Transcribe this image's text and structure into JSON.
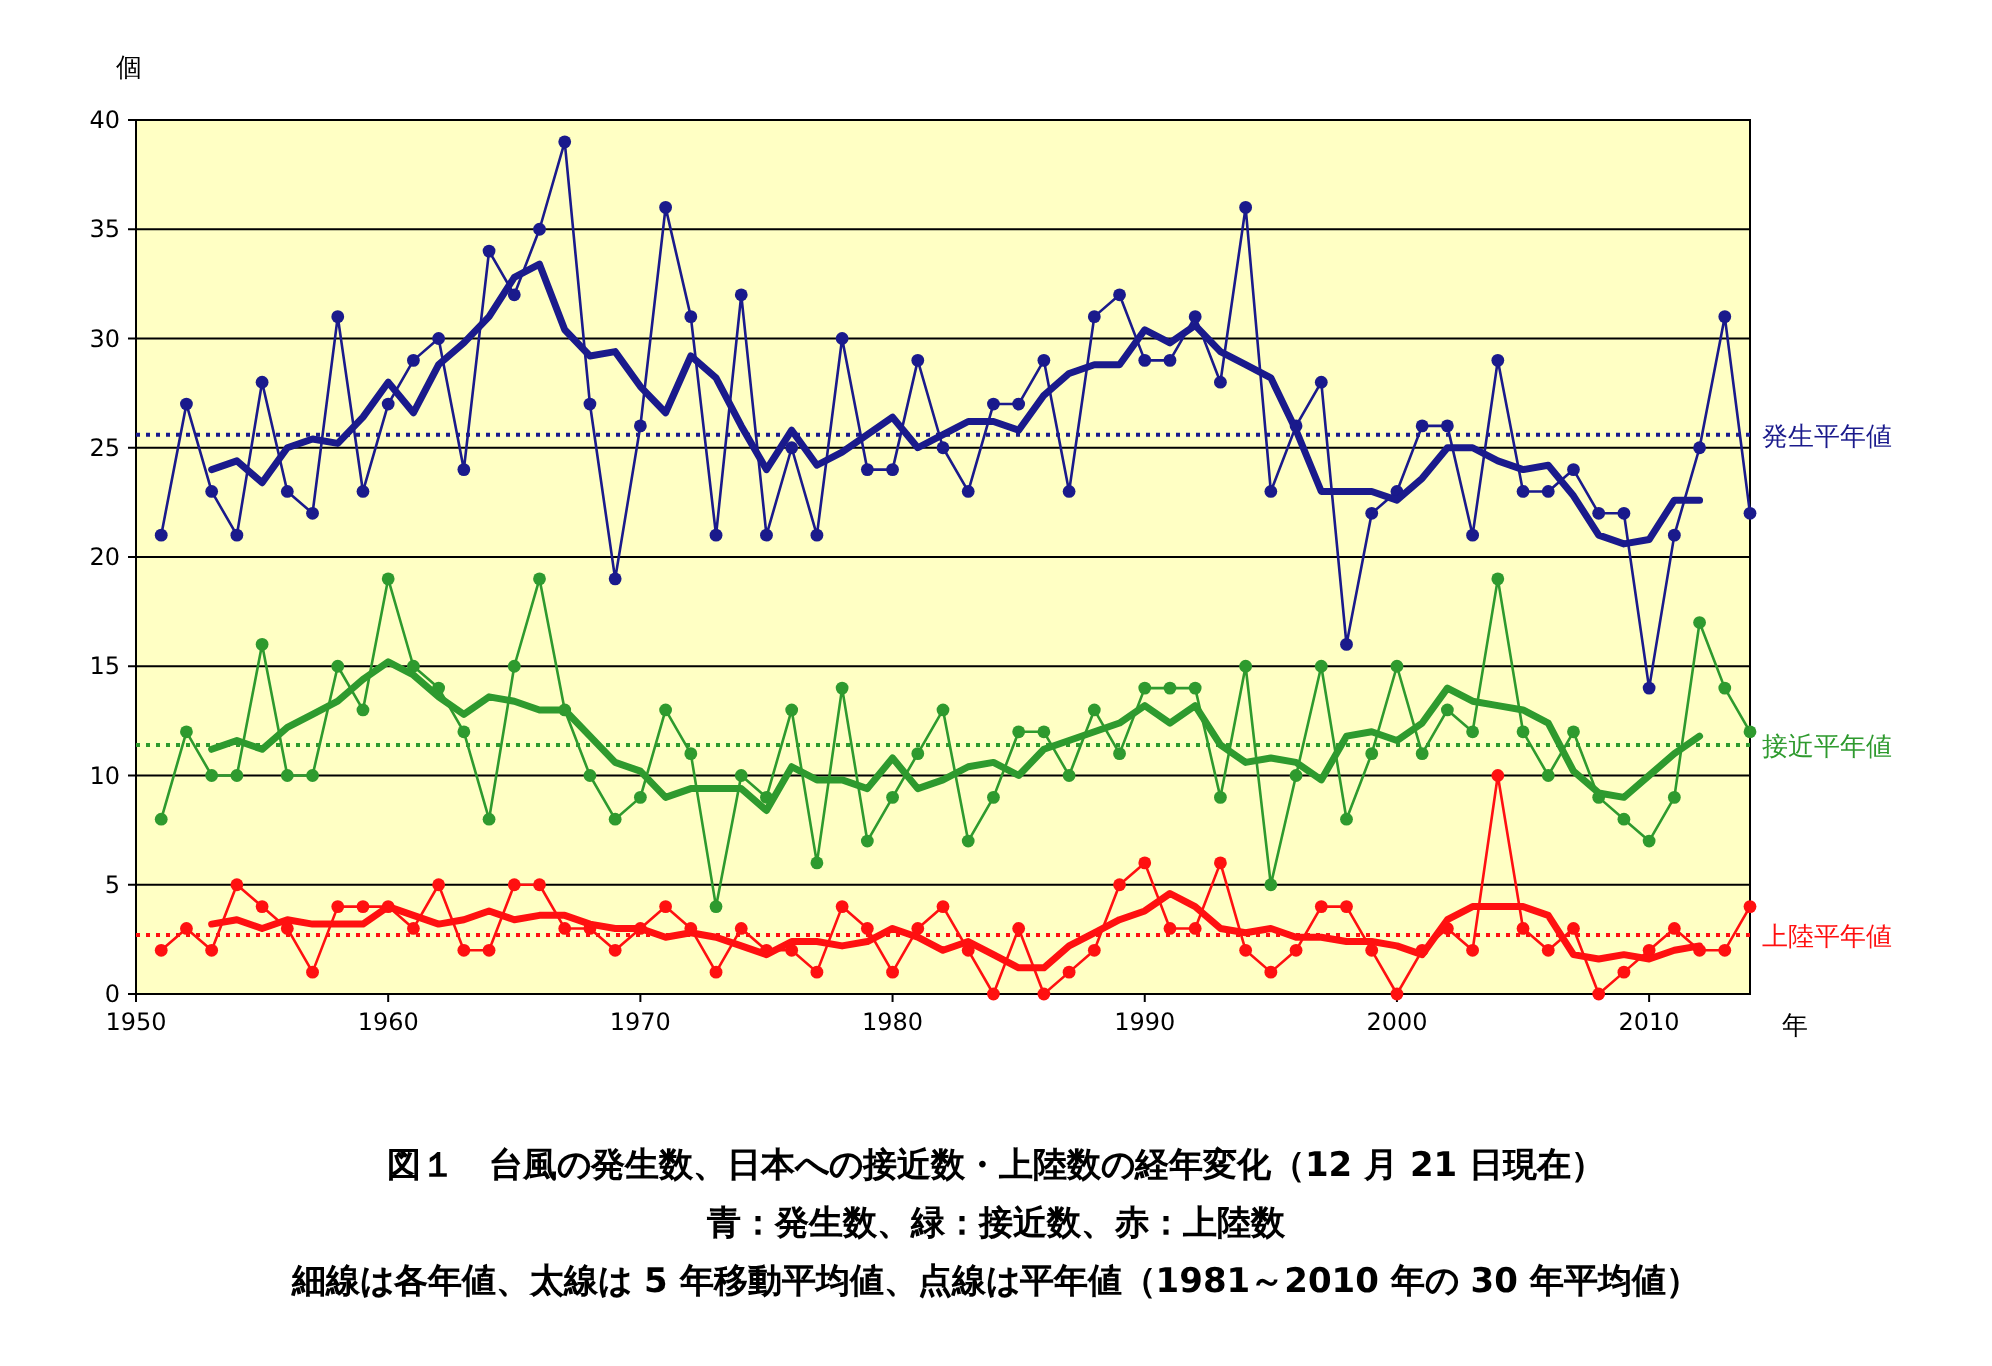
{
  "chart_data": {
    "type": "line",
    "title": "図１　台風の発生数、日本への接近数・上陸数の経年変化（12 月 21 日現在）",
    "subtitle": "青：発生数、緑：接近数、赤：上陸数",
    "annotations": [
      "細線は各年値、太線は 5 年移動平均値、点線は平年値（1981～2010 年の 30 年平均値）"
    ],
    "xlabel": "年",
    "ylabel": "個",
    "xlim": [
      1950,
      2014
    ],
    "ylim": [
      0,
      40
    ],
    "xticks": [
      1950,
      1960,
      1970,
      1980,
      1990,
      2000,
      2010
    ],
    "yticks": [
      0,
      5,
      10,
      15,
      20,
      25,
      30,
      35,
      40
    ],
    "grid": "y",
    "series": [
      {
        "marker": "circle",
        "color": "#1a1a8c",
        "x": [
          1951,
          1952,
          1953,
          1954,
          1955,
          1956,
          1957,
          1958,
          1959,
          1960,
          1961,
          1962,
          1963,
          1964,
          1965,
          1966,
          1967,
          1968,
          1969,
          1970,
          1971,
          1972,
          1973,
          1974,
          1975,
          1976,
          1977,
          1978,
          1979,
          1980,
          1981,
          1982,
          1983,
          1984,
          1985,
          1986,
          1987,
          1988,
          1989,
          1990,
          1991,
          1992,
          1993,
          1994,
          1995,
          1996,
          1997,
          1998,
          1999,
          2000,
          2001,
          2002,
          2003,
          2004,
          2005,
          2006,
          2007,
          2008,
          2009,
          2010,
          2011,
          2012,
          2013,
          2014
        ],
        "values": [
          21,
          27,
          23,
          21,
          28,
          23,
          22,
          31,
          23,
          27,
          29,
          30,
          24,
          34,
          32,
          35,
          39,
          27,
          19,
          26,
          36,
          31,
          21,
          32,
          21,
          25,
          21,
          30,
          24,
          24,
          29,
          25,
          23,
          27,
          27,
          29,
          23,
          31,
          32,
          29,
          29,
          31,
          28,
          36,
          23,
          26,
          28,
          16,
          22,
          23,
          26,
          26,
          21,
          29,
          23,
          23,
          24,
          22,
          22,
          14,
          21,
          25,
          31,
          22
        ]
      },
      {
        "marker": "none",
        "color": "#1a1a8c",
        "x": [
          1953,
          1954,
          1955,
          1956,
          1957,
          1958,
          1959,
          1960,
          1961,
          1962,
          1963,
          1964,
          1965,
          1966,
          1967,
          1968,
          1969,
          1970,
          1971,
          1972,
          1973,
          1974,
          1975,
          1976,
          1977,
          1978,
          1979,
          1980,
          1981,
          1982,
          1983,
          1984,
          1985,
          1986,
          1987,
          1988,
          1989,
          1990,
          1991,
          1992,
          1993,
          1994,
          1995,
          1996,
          1997,
          1998,
          1999,
          2000,
          2001,
          2002,
          2003,
          2004,
          2005,
          2006,
          2007,
          2008,
          2009,
          2010,
          2011,
          2012
        ],
        "values": [
          24.0,
          24.4,
          23.4,
          25.0,
          25.4,
          25.2,
          26.4,
          28.0,
          26.6,
          28.8,
          29.8,
          31.0,
          32.8,
          33.4,
          30.4,
          29.2,
          29.4,
          27.8,
          26.6,
          29.2,
          28.2,
          26.0,
          24.0,
          25.8,
          24.2,
          24.8,
          25.6,
          26.4,
          25.0,
          25.6,
          26.2,
          26.2,
          25.8,
          27.4,
          28.4,
          28.8,
          28.8,
          30.4,
          29.8,
          30.6,
          29.4,
          28.8,
          28.2,
          25.8,
          23.0,
          23.0,
          23.0,
          22.6,
          23.6,
          25.0,
          25.0,
          24.4,
          24.0,
          24.2,
          22.8,
          21.0,
          20.6,
          20.8,
          22.6,
          22.6
        ]
      },
      {
        "marker": "circle",
        "color": "#2e9a2e",
        "x": [
          1951,
          1952,
          1953,
          1954,
          1955,
          1956,
          1957,
          1958,
          1959,
          1960,
          1961,
          1962,
          1963,
          1964,
          1965,
          1966,
          1967,
          1968,
          1969,
          1970,
          1971,
          1972,
          1973,
          1974,
          1975,
          1976,
          1977,
          1978,
          1979,
          1980,
          1981,
          1982,
          1983,
          1984,
          1985,
          1986,
          1987,
          1988,
          1989,
          1990,
          1991,
          1992,
          1993,
          1994,
          1995,
          1996,
          1997,
          1998,
          1999,
          2000,
          2001,
          2002,
          2003,
          2004,
          2005,
          2006,
          2007,
          2008,
          2009,
          2010,
          2011,
          2012,
          2013,
          2014
        ],
        "values": [
          8,
          12,
          10,
          10,
          16,
          10,
          10,
          15,
          13,
          19,
          15,
          14,
          12,
          8,
          15,
          19,
          13,
          10,
          8,
          9,
          13,
          11,
          4,
          10,
          9,
          13,
          6,
          14,
          7,
          9,
          11,
          13,
          7,
          9,
          12,
          12,
          10,
          13,
          11,
          14,
          14,
          14,
          9,
          15,
          5,
          10,
          15,
          8,
          11,
          15,
          11,
          13,
          12,
          19,
          12,
          10,
          12,
          9,
          8,
          7,
          9,
          17,
          14,
          12
        ]
      },
      {
        "marker": "none",
        "color": "#2e9a2e",
        "x": [
          1953,
          1954,
          1955,
          1956,
          1957,
          1958,
          1959,
          1960,
          1961,
          1962,
          1963,
          1964,
          1965,
          1966,
          1967,
          1968,
          1969,
          1970,
          1971,
          1972,
          1973,
          1974,
          1975,
          1976,
          1977,
          1978,
          1979,
          1980,
          1981,
          1982,
          1983,
          1984,
          1985,
          1986,
          1987,
          1988,
          1989,
          1990,
          1991,
          1992,
          1993,
          1994,
          1995,
          1996,
          1997,
          1998,
          1999,
          2000,
          2001,
          2002,
          2003,
          2004,
          2005,
          2006,
          2007,
          2008,
          2009,
          2010,
          2011,
          2012
        ],
        "values": [
          11.2,
          11.6,
          11.2,
          12.2,
          12.8,
          13.4,
          14.4,
          15.2,
          14.6,
          13.6,
          12.8,
          13.6,
          13.4,
          13.0,
          13.0,
          11.8,
          10.6,
          10.2,
          9.0,
          9.4,
          9.4,
          9.4,
          8.4,
          10.4,
          9.8,
          9.8,
          9.4,
          10.8,
          9.4,
          9.8,
          10.4,
          10.6,
          10.0,
          11.2,
          11.6,
          12.0,
          12.4,
          13.2,
          12.4,
          13.2,
          11.4,
          10.6,
          10.8,
          10.6,
          9.8,
          11.8,
          12.0,
          11.6,
          12.4,
          14.0,
          13.4,
          13.2,
          13.0,
          12.4,
          10.2,
          9.2,
          9.0,
          10.0,
          11.0,
          11.8
        ]
      },
      {
        "marker": "circle",
        "color": "#ff1010",
        "x": [
          1951,
          1952,
          1953,
          1954,
          1955,
          1956,
          1957,
          1958,
          1959,
          1960,
          1961,
          1962,
          1963,
          1964,
          1965,
          1966,
          1967,
          1968,
          1969,
          1970,
          1971,
          1972,
          1973,
          1974,
          1975,
          1976,
          1977,
          1978,
          1979,
          1980,
          1981,
          1982,
          1983,
          1984,
          1985,
          1986,
          1987,
          1988,
          1989,
          1990,
          1991,
          1992,
          1993,
          1994,
          1995,
          1996,
          1997,
          1998,
          1999,
          2000,
          2001,
          2002,
          2003,
          2004,
          2005,
          2006,
          2007,
          2008,
          2009,
          2010,
          2011,
          2012,
          2013,
          2014
        ],
        "values": [
          2,
          3,
          2,
          5,
          4,
          3,
          1,
          4,
          4,
          4,
          3,
          5,
          2,
          2,
          5,
          5,
          3,
          3,
          2,
          3,
          4,
          3,
          1,
          3,
          2,
          2,
          1,
          4,
          3,
          1,
          3,
          4,
          2,
          0,
          3,
          0,
          1,
          2,
          5,
          6,
          3,
          3,
          6,
          2,
          1,
          2,
          4,
          4,
          2,
          0,
          2,
          3,
          2,
          10,
          3,
          2,
          3,
          0,
          1,
          2,
          3,
          2,
          2,
          4
        ]
      },
      {
        "marker": "none",
        "color": "#ff1010",
        "x": [
          1953,
          1954,
          1955,
          1956,
          1957,
          1958,
          1959,
          1960,
          1961,
          1962,
          1963,
          1964,
          1965,
          1966,
          1967,
          1968,
          1969,
          1970,
          1971,
          1972,
          1973,
          1974,
          1975,
          1976,
          1977,
          1978,
          1979,
          1980,
          1981,
          1982,
          1983,
          1984,
          1985,
          1986,
          1987,
          1988,
          1989,
          1990,
          1991,
          1992,
          1993,
          1994,
          1995,
          1996,
          1997,
          1998,
          1999,
          2000,
          2001,
          2002,
          2003,
          2004,
          2005,
          2006,
          2007,
          2008,
          2009,
          2010,
          2011,
          2012
        ],
        "values": [
          3.2,
          3.4,
          3.0,
          3.4,
          3.2,
          3.2,
          3.2,
          4.0,
          3.6,
          3.2,
          3.4,
          3.8,
          3.4,
          3.6,
          3.6,
          3.2,
          3.0,
          3.0,
          2.6,
          2.8,
          2.6,
          2.2,
          1.8,
          2.4,
          2.4,
          2.2,
          2.4,
          3.0,
          2.6,
          2.0,
          2.4,
          1.8,
          1.2,
          1.2,
          2.2,
          2.8,
          3.4,
          3.8,
          4.6,
          4.0,
          3.0,
          2.8,
          3.0,
          2.6,
          2.6,
          2.4,
          2.4,
          2.2,
          1.8,
          3.4,
          4.0,
          4.0,
          4.0,
          3.6,
          1.8,
          1.6,
          1.8,
          1.6,
          2.0,
          2.2
        ]
      }
    ],
    "ref_lines": [
      {
        "axis": "y",
        "value": 25.6,
        "label": "発生平年値",
        "color": "#1a1a8c",
        "line_style": "dotted"
      },
      {
        "axis": "y",
        "value": 11.4,
        "label": "接近平年値",
        "color": "#2e9a2e",
        "line_style": "dotted"
      },
      {
        "axis": "y",
        "value": 2.7,
        "label": "上陸平年値",
        "color": "#ff1010",
        "line_style": "dotted"
      }
    ]
  }
}
